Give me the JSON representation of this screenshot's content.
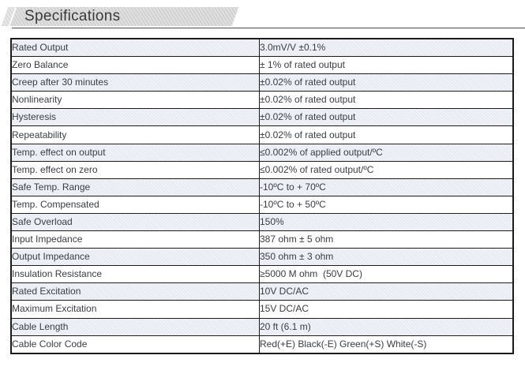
{
  "page": {
    "title": "Specifications"
  },
  "colors": {
    "banner": "#d2d2d2",
    "banner_stripe": "#dcdcdc",
    "row_shade": "#e9ebf2",
    "border": "#1b1b1b",
    "text": "#3a3d42"
  },
  "table": {
    "rows": [
      {
        "label": "Rated Output",
        "value": "3.0mV/V ±0.1%"
      },
      {
        "label": "Zero Balance",
        "value": "± 1% of rated output"
      },
      {
        "label": "Creep after 30 minutes",
        "value": "±0.02% of rated output"
      },
      {
        "label": "Nonlinearity",
        "value": "±0.02% of rated output"
      },
      {
        "label": "Hysteresis",
        "value": "±0.02% of rated output"
      },
      {
        "label": "Repeatability",
        "value": "±0.02% of rated output"
      },
      {
        "label": "Temp. effect on output",
        "value": "≤0.002% of applied output/ºC"
      },
      {
        "label": "Temp. effect on zero",
        "value": "≤0.002% of rated output/ºC"
      },
      {
        "label": "Safe Temp. Range",
        "value": "-10ºC to + 70ºC"
      },
      {
        "label": "Temp. Compensated",
        "value": "-10ºC to + 50ºC"
      },
      {
        "label": "Safe Overload",
        "value": "150%"
      },
      {
        "label": "Input Impedance",
        "value": "387 ohm ± 5 ohm"
      },
      {
        "label": "Output Impedance",
        "value": "350 ohm ± 3 ohm"
      },
      {
        "label": "Insulation Resistance",
        "value": "≥5000 M ohm  (50V DC)"
      },
      {
        "label": "Rated Excitation",
        "value": "10V DC/AC"
      },
      {
        "label": "Maximum Excitation",
        "value": "15V DC/AC"
      },
      {
        "label": "Cable Length",
        "value": "20 ft (6.1 m)"
      },
      {
        "label": "Cable Color Code",
        "value": "Red(+E) Black(-E) Green(+S) White(-S)"
      }
    ]
  }
}
